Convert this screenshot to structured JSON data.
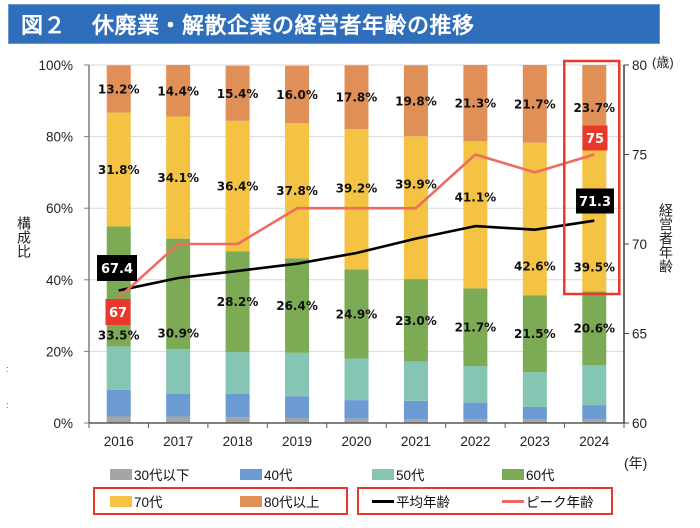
{
  "title": {
    "figure_label": "図２",
    "text": "休廃業・解散企業の経営者年齢の推移"
  },
  "side_marks": [
    ":",
    ":"
  ],
  "chart_data": {
    "type": "bar",
    "stacked": true,
    "title": "図２　休廃業・解散企業の経営者年齢の推移",
    "categories": [
      "2016",
      "2017",
      "2018",
      "2019",
      "2020",
      "2021",
      "2022",
      "2023",
      "2024"
    ],
    "xlabel": "(年)",
    "ylabel_left": "構成比",
    "ylabel_right": "経営者年齢",
    "yunit_right": "(歳)",
    "ylim_left": [
      0,
      100
    ],
    "ylim_right": [
      60,
      80
    ],
    "yticks_left": [
      {
        "value": 0,
        "label": "0%"
      },
      {
        "value": 20,
        "label": "20%"
      },
      {
        "value": 40,
        "label": "40%"
      },
      {
        "value": 60,
        "label": "60%"
      },
      {
        "value": 80,
        "label": "80%"
      },
      {
        "value": 100,
        "label": "100%"
      }
    ],
    "yticks_right": [
      {
        "value": 60,
        "label": "60"
      },
      {
        "value": 65,
        "label": "65"
      },
      {
        "value": 70,
        "label": "70"
      },
      {
        "value": 75,
        "label": "75"
      },
      {
        "value": 80,
        "label": "80"
      }
    ],
    "grid": true,
    "legend_position": "bottom",
    "series": [
      {
        "name": "30代以下",
        "color": "#A5A5A5",
        "show_labels": false,
        "values": [
          1.8,
          1.8,
          1.6,
          1.4,
          1.2,
          1.0,
          1.1,
          1.0,
          1.0
        ]
      },
      {
        "name": "40代",
        "color": "#6B9BD2",
        "show_labels": false,
        "values": [
          7.5,
          6.3,
          6.5,
          6.1,
          5.2,
          5.2,
          4.6,
          3.5,
          4.0
        ]
      },
      {
        "name": "50代",
        "color": "#84C6B3",
        "show_labels": false,
        "values": [
          12.1,
          12.5,
          11.7,
          12.1,
          11.6,
          11.0,
          10.2,
          9.7,
          11.2
        ]
      },
      {
        "name": "60代",
        "color": "#7DAB55",
        "show_labels": true,
        "values": [
          33.5,
          30.9,
          28.2,
          26.4,
          24.9,
          23.0,
          21.7,
          21.5,
          20.6
        ]
      },
      {
        "name": "70代",
        "color": "#F4C343",
        "show_labels": true,
        "values": [
          31.8,
          34.1,
          36.4,
          37.8,
          39.2,
          39.9,
          41.1,
          42.6,
          39.5
        ]
      },
      {
        "name": "80代以上",
        "color": "#E09057",
        "show_labels": true,
        "values": [
          13.2,
          14.4,
          15.4,
          16.0,
          17.8,
          19.8,
          21.3,
          21.7,
          23.7
        ]
      }
    ],
    "line_series": [
      {
        "name": "平均年齢",
        "axis": "right",
        "color": "#000000",
        "values": [
          67.4,
          68.1,
          68.5,
          68.9,
          69.5,
          70.3,
          71.0,
          70.8,
          71.3
        ],
        "callouts": [
          {
            "index": 0,
            "text": "67.4",
            "bg": "#000000"
          },
          {
            "index": 8,
            "text": "71.3",
            "bg": "#000000"
          }
        ]
      },
      {
        "name": "ピーク年齢",
        "axis": "right",
        "color": "#EE6B62",
        "values": [
          67,
          70,
          70,
          72,
          72,
          72,
          75,
          74,
          75
        ],
        "callouts": [
          {
            "index": 0,
            "text": "67",
            "bg": "#E8392C"
          },
          {
            "index": 8,
            "text": "75",
            "bg": "#E8392C"
          }
        ]
      }
    ],
    "highlight": {
      "category": "2024",
      "color": "#E8392C"
    }
  }
}
